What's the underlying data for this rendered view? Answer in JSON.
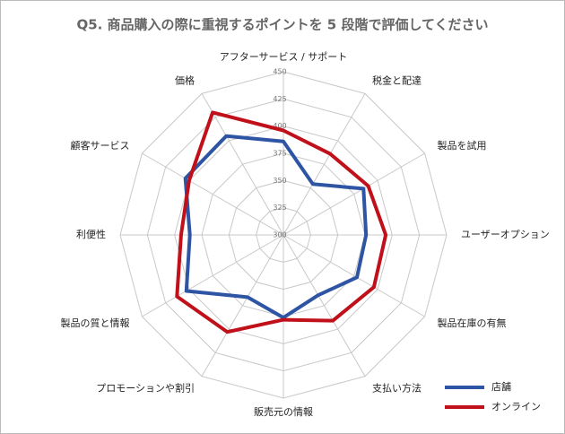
{
  "chart_data": {
    "type": "radar",
    "title": "Q5. 商品購入の際に重視するポイントを 5 段階で評価してください",
    "categories": [
      "アフターサービス / サポート",
      "税金と配達",
      "製品を試用",
      "ユーザーオプション",
      "製品在庫の有無",
      "支払い方法",
      "販売元の情報",
      "プロモーションや割引",
      "製品の質と情報",
      "利便性",
      "顧客サービス",
      "価格"
    ],
    "series": [
      {
        "name": "店舗",
        "color": "#2e54a4",
        "values": [
          386,
          354,
          385,
          376,
          378,
          364,
          376,
          366,
          403,
          386,
          404,
          405
        ]
      },
      {
        "name": "オンライン",
        "color": "#c0101a",
        "values": [
          396,
          386,
          390,
          394,
          396,
          391,
          378,
          403,
          413,
          394,
          400,
          430
        ]
      }
    ],
    "ylim": [
      300,
      450
    ],
    "yticks": [
      300,
      325,
      350,
      375,
      400,
      425,
      450
    ],
    "grid": true,
    "legend": "bottom-right"
  }
}
